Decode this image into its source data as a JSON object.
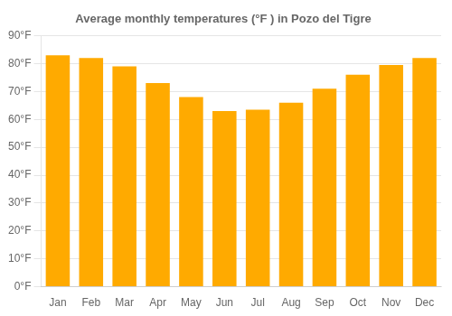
{
  "chart_data": {
    "type": "bar",
    "title": "Average monthly temperatures (°F ) in Pozo del Tigre",
    "categories": [
      "Jan",
      "Feb",
      "Mar",
      "Apr",
      "May",
      "Jun",
      "Jul",
      "Aug",
      "Sep",
      "Oct",
      "Nov",
      "Dec"
    ],
    "values": [
      83,
      82,
      79,
      73,
      68,
      63,
      63.5,
      66,
      71,
      76,
      79.5,
      82
    ],
    "color": "#FFAA00",
    "ylim": [
      0,
      90
    ],
    "yticks": [
      {
        "value": 0,
        "label": "0°F"
      },
      {
        "value": 10,
        "label": "10°F"
      },
      {
        "value": 20,
        "label": "20°F"
      },
      {
        "value": 30,
        "label": "30°F"
      },
      {
        "value": 40,
        "label": "40°F"
      },
      {
        "value": 50,
        "label": "50°F"
      },
      {
        "value": 60,
        "label": "60°F"
      },
      {
        "value": 70,
        "label": "70°F"
      },
      {
        "value": 80,
        "label": "80°F"
      },
      {
        "value": 90,
        "label": "90°F"
      }
    ],
    "grid": true
  }
}
